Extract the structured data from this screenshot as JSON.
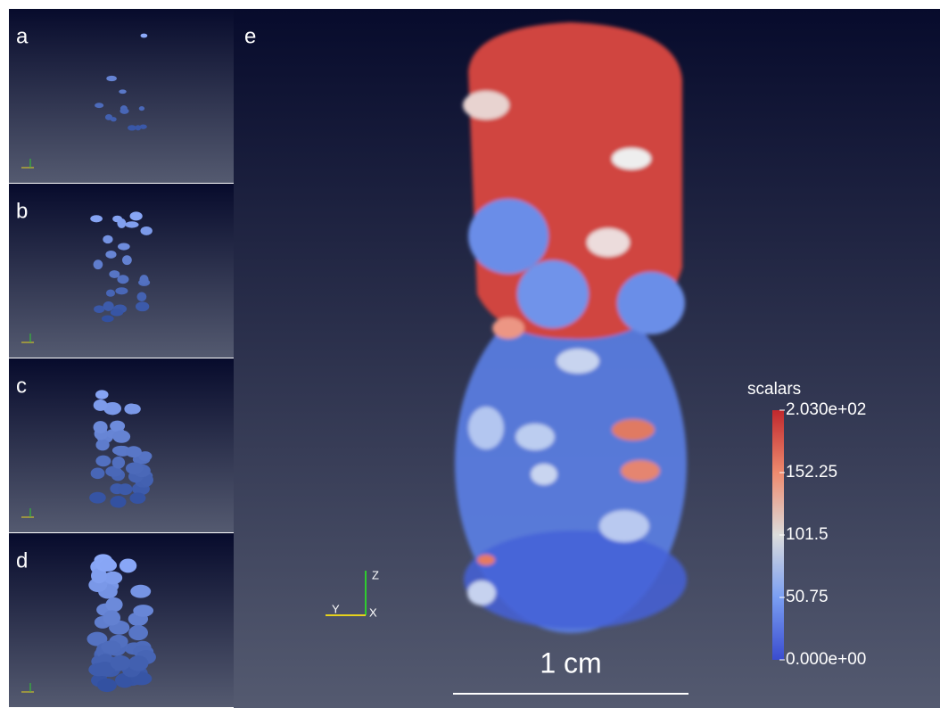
{
  "panels": [
    {
      "label": "a"
    },
    {
      "label": "b"
    },
    {
      "label": "c"
    },
    {
      "label": "d"
    }
  ],
  "main": {
    "label": "e",
    "axes": {
      "z": "Z",
      "y": "Y",
      "x": "X"
    },
    "scale_bar": "1 cm",
    "colorbar": {
      "title": "scalars",
      "lim": [
        0,
        203
      ],
      "ticks": [
        {
          "value": 203,
          "label": "2.030e+02"
        },
        152.25,
        101.5,
        50.75,
        {
          "value": 0,
          "label": "0.000e+00"
        }
      ]
    }
  }
}
